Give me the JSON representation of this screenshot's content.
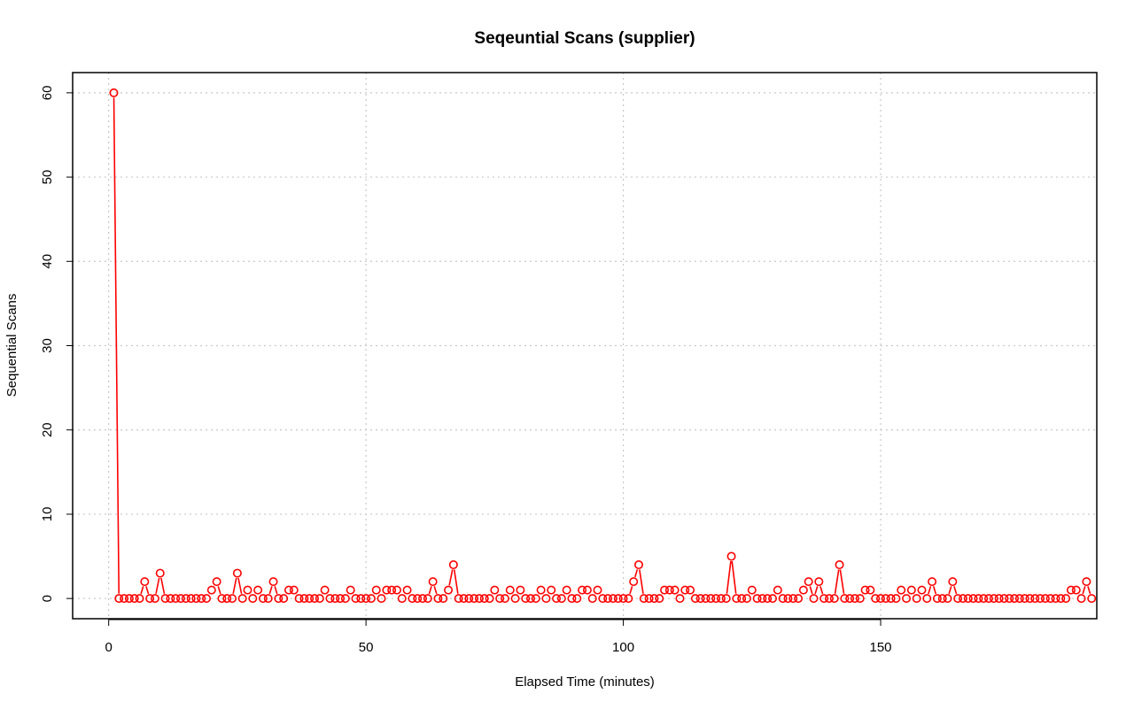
{
  "chart_data": {
    "type": "line",
    "title": "Seqeuntial Scans (supplier)",
    "xlabel": "Elapsed Time (minutes)",
    "ylabel": "Sequential Scans",
    "xlim": [
      -7,
      192
    ],
    "ylim": [
      -2.4,
      62.4
    ],
    "xticks": [
      0,
      50,
      100,
      150
    ],
    "yticks": [
      0,
      10,
      20,
      30,
      40,
      50,
      60
    ],
    "grid": true,
    "legend": "none",
    "series": [
      {
        "color": "#ff0000",
        "marker": "open-circle",
        "x_start": 1,
        "x_step": 1,
        "values": [
          60,
          0,
          0,
          0,
          0,
          0,
          2,
          0,
          0,
          3,
          0,
          0,
          0,
          0,
          0,
          0,
          0,
          0,
          0,
          1,
          2,
          0,
          0,
          0,
          3,
          0,
          1,
          0,
          1,
          0,
          0,
          2,
          0,
          0,
          1,
          1,
          0,
          0,
          0,
          0,
          0,
          1,
          0,
          0,
          0,
          0,
          1,
          0,
          0,
          0,
          0,
          1,
          0,
          1,
          1,
          1,
          0,
          1,
          0,
          0,
          0,
          0,
          2,
          0,
          0,
          1,
          4,
          0,
          0,
          0,
          0,
          0,
          0,
          0,
          1,
          0,
          0,
          1,
          0,
          1,
          0,
          0,
          0,
          1,
          0,
          1,
          0,
          0,
          1,
          0,
          0,
          1,
          1,
          0,
          1,
          0,
          0,
          0,
          0,
          0,
          0,
          2,
          4,
          0,
          0,
          0,
          0,
          1,
          1,
          1,
          0,
          1,
          1,
          0,
          0,
          0,
          0,
          0,
          0,
          0,
          5,
          0,
          0,
          0,
          1,
          0,
          0,
          0,
          0,
          1,
          0,
          0,
          0,
          0,
          1,
          2,
          0,
          2,
          0,
          0,
          0,
          4,
          0,
          0,
          0,
          0,
          1,
          1,
          0,
          0,
          0,
          0,
          0,
          1,
          0,
          1,
          0,
          1,
          0,
          2,
          0,
          0,
          0,
          2,
          0,
          0,
          0,
          0,
          0,
          0,
          0,
          0,
          0,
          0,
          0,
          0,
          0,
          0,
          0,
          0,
          0,
          0,
          0,
          0,
          0,
          0,
          1,
          1,
          0,
          2,
          0
        ]
      }
    ]
  }
}
